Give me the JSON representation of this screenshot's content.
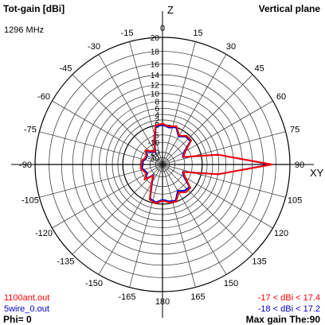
{
  "header": {
    "title": "Tot-gain [dBi]",
    "plane": "Vertical plane",
    "frequency": "1296 MHz"
  },
  "footer": {
    "phi": "Phi= 0",
    "max_gain": "Max gain The:90"
  },
  "chart_data": {
    "type": "polar",
    "angle_labels": [
      {
        "angle": 0,
        "text": "0"
      },
      {
        "angle": 15,
        "text": "15"
      },
      {
        "angle": 30,
        "text": "30"
      },
      {
        "angle": 45,
        "text": "45"
      },
      {
        "angle": 60,
        "text": "60"
      },
      {
        "angle": 75,
        "text": "75"
      },
      {
        "angle": 90,
        "text": "90"
      },
      {
        "angle": 105,
        "text": "105"
      },
      {
        "angle": 120,
        "text": "120"
      },
      {
        "angle": 135,
        "text": "135"
      },
      {
        "angle": 150,
        "text": "150"
      },
      {
        "angle": 165,
        "text": "165"
      },
      {
        "angle": 180,
        "text": "180"
      },
      {
        "angle": -165,
        "text": "-165"
      },
      {
        "angle": -150,
        "text": "-150"
      },
      {
        "angle": -135,
        "text": "-135"
      },
      {
        "angle": -120,
        "text": "-120"
      },
      {
        "angle": -105,
        "text": "-105"
      },
      {
        "angle": -90,
        "text": "-90"
      },
      {
        "angle": -75,
        "text": "-75"
      },
      {
        "angle": -60,
        "text": "-60"
      },
      {
        "angle": -45,
        "text": "-45"
      },
      {
        "angle": -30,
        "text": "-30"
      },
      {
        "angle": -15,
        "text": "-15"
      }
    ],
    "axis_label_z": "Z",
    "axis_label_xy": "XY",
    "radial_ticks": [
      20,
      18,
      16,
      14,
      12,
      10,
      8,
      6,
      4,
      2,
      0,
      -5,
      -10,
      -20,
      -30
    ],
    "radial_range": [
      -30,
      20
    ],
    "series": [
      {
        "name": "1100ant.out",
        "range_text": "-17 < dBi < 17.4",
        "color": "#ff0000",
        "points": [
          [
            0,
            0.5
          ],
          [
            10,
            -0.5
          ],
          [
            20,
            0.5
          ],
          [
            30,
            -3
          ],
          [
            40,
            -1
          ],
          [
            50,
            -1
          ],
          [
            60,
            -7
          ],
          [
            70,
            -10
          ],
          [
            80,
            6
          ],
          [
            90,
            17.4
          ],
          [
            100,
            6
          ],
          [
            110,
            -10
          ],
          [
            120,
            -7
          ],
          [
            130,
            -1.5
          ],
          [
            140,
            -1.5
          ],
          [
            150,
            -3.5
          ],
          [
            160,
            0
          ],
          [
            170,
            -0.5
          ],
          [
            180,
            -1.5
          ],
          [
            -170,
            0
          ],
          [
            -160,
            -1
          ],
          [
            -150,
            -10
          ],
          [
            -140,
            -17
          ],
          [
            -130,
            -9
          ],
          [
            -120,
            -13
          ],
          [
            -110,
            -12
          ],
          [
            -100,
            -10
          ],
          [
            -90,
            -11
          ],
          [
            -80,
            -11
          ],
          [
            -70,
            -13
          ],
          [
            -60,
            -13
          ],
          [
            -50,
            -10
          ],
          [
            -40,
            -14
          ],
          [
            -30,
            -17
          ],
          [
            -20,
            -8
          ],
          [
            -10,
            0
          ]
        ]
      },
      {
        "name": "5wire_0.out",
        "range_text": "-18 < dBi < 17.2",
        "color": "#0000cc",
        "points": [
          [
            0,
            0
          ],
          [
            10,
            -1
          ],
          [
            20,
            0
          ],
          [
            30,
            -3.5
          ],
          [
            40,
            -1.5
          ],
          [
            50,
            -1.5
          ],
          [
            60,
            -8
          ],
          [
            70,
            -10.5
          ],
          [
            80,
            6
          ],
          [
            90,
            17.2
          ],
          [
            100,
            6
          ],
          [
            110,
            -10.5
          ],
          [
            120,
            -8
          ],
          [
            130,
            -2
          ],
          [
            140,
            -2.5
          ],
          [
            150,
            -4.5
          ],
          [
            160,
            -0.5
          ],
          [
            170,
            -1
          ],
          [
            180,
            -2
          ],
          [
            -170,
            -0.5
          ],
          [
            -160,
            -1.5
          ],
          [
            -150,
            -11
          ],
          [
            -140,
            -18
          ],
          [
            -130,
            -10
          ],
          [
            -120,
            -14
          ],
          [
            -110,
            -13
          ],
          [
            -100,
            -11
          ],
          [
            -90,
            -12
          ],
          [
            -80,
            -12
          ],
          [
            -70,
            -14
          ],
          [
            -60,
            -14
          ],
          [
            -50,
            -11
          ],
          [
            -40,
            -15
          ],
          [
            -30,
            -18
          ],
          [
            -20,
            -9
          ],
          [
            -10,
            -0.5
          ]
        ]
      }
    ]
  }
}
